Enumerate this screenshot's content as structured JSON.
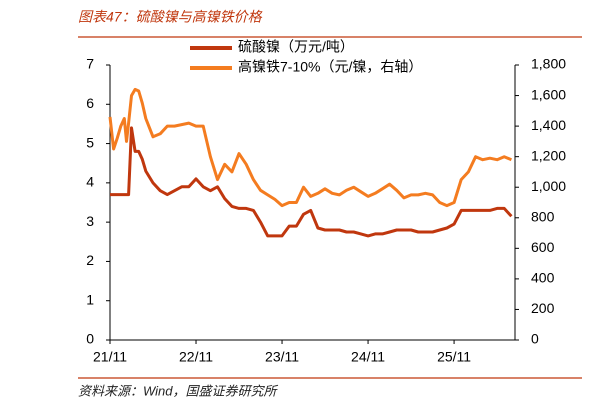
{
  "chart_data": {
    "type": "line",
    "title": "图表47：硫酸镍与高镍铁价格",
    "source": "资料来源：Wind，国盛证券研究所",
    "x": [
      0,
      0.5,
      1,
      1.5,
      2,
      2.3,
      2.6,
      3,
      3.5,
      4,
      4.5,
      5,
      6,
      7,
      8,
      9,
      10,
      11,
      12,
      13,
      14,
      15,
      16,
      17,
      18,
      19,
      20,
      21,
      22,
      23,
      24,
      25,
      26,
      27,
      28,
      29,
      30,
      31,
      32,
      33,
      34,
      35,
      36,
      37,
      38,
      39,
      40,
      41,
      42,
      43,
      44,
      45,
      46,
      47,
      48,
      49,
      50,
      51,
      52,
      53,
      54,
      55,
      56
    ],
    "xlim": [
      0,
      56.5
    ],
    "xticks": [
      {
        "value": 0,
        "label": "21/11"
      },
      {
        "value": 12,
        "label": "22/11"
      },
      {
        "value": 24,
        "label": "23/11"
      },
      {
        "value": 36,
        "label": "24/11"
      },
      {
        "value": 48,
        "label": "25/11"
      }
    ],
    "ylim": [
      0,
      7
    ],
    "yticks": [
      0,
      1,
      2,
      3,
      4,
      5,
      6,
      7
    ],
    "y2lim": [
      0,
      1800
    ],
    "y2ticks": [
      0,
      200,
      400,
      600,
      800,
      {
        "value": 1000,
        "label": "1,000"
      },
      {
        "value": 1200,
        "label": "1,200"
      },
      {
        "value": 1400,
        "label": "1,400"
      },
      {
        "value": 1600,
        "label": "1,600"
      },
      {
        "value": 1800,
        "label": "1,800"
      }
    ],
    "series": [
      {
        "name": "硫酸镍（万元/吨）",
        "color": "#c0370e",
        "axis": "y",
        "values": [
          3.7,
          3.7,
          3.7,
          3.7,
          3.7,
          3.7,
          3.7,
          5.4,
          4.8,
          4.8,
          4.6,
          4.3,
          4.0,
          3.8,
          3.7,
          3.8,
          3.9,
          3.9,
          4.1,
          3.9,
          3.8,
          3.9,
          3.6,
          3.4,
          3.35,
          3.35,
          3.3,
          3.0,
          2.65,
          2.65,
          2.65,
          2.9,
          2.9,
          3.2,
          3.3,
          2.85,
          2.8,
          2.8,
          2.8,
          2.75,
          2.75,
          2.7,
          2.65,
          2.7,
          2.7,
          2.75,
          2.8,
          2.8,
          2.8,
          2.75,
          2.75,
          2.75,
          2.8,
          2.85,
          2.95,
          3.3,
          3.3,
          3.3,
          3.3,
          3.3,
          3.35,
          3.35,
          3.15
        ]
      },
      {
        "name": "高镍铁7-10%（元/镍，右轴）",
        "color": "#f47c20",
        "axis": "y2",
        "values": [
          1460,
          1250,
          1320,
          1400,
          1450,
          1300,
          1420,
          1600,
          1640,
          1630,
          1550,
          1450,
          1330,
          1350,
          1400,
          1400,
          1410,
          1420,
          1400,
          1400,
          1200,
          1050,
          1150,
          1100,
          1220,
          1150,
          1050,
          980,
          950,
          920,
          880,
          900,
          900,
          1000,
          940,
          960,
          990,
          960,
          950,
          980,
          1000,
          970,
          940,
          960,
          990,
          1020,
          980,
          930,
          950,
          950,
          960,
          950,
          900,
          880,
          900,
          1050,
          1100,
          1200,
          1180,
          1190,
          1180,
          1200,
          1180
        ]
      }
    ]
  }
}
